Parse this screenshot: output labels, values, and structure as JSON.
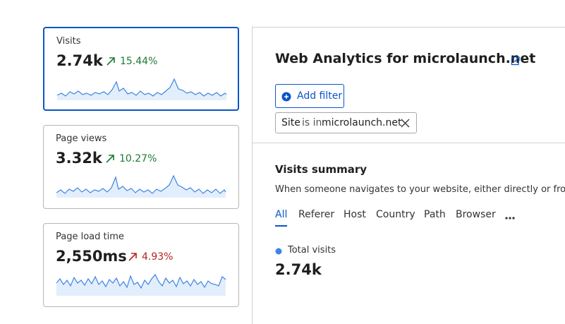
{
  "cards": [
    {
      "label": "Visits",
      "value": "2.74k",
      "change": "15.44%"
    },
    {
      "label": "Page views",
      "value": "3.32k",
      "change": "10.27%"
    },
    {
      "label": "Page load time",
      "value": "2,550ms",
      "change": "4.93%"
    }
  ],
  "header": {
    "title": "Web Analytics for microlaunch.net"
  },
  "filter": {
    "button": "Add filter",
    "chip": {
      "field": "Site",
      "operator": "is in",
      "value": "microlaunch.net"
    }
  },
  "summary": {
    "title": "Visits summary",
    "description": "When someone navigates to your website, either directly or from",
    "tabs": [
      "All",
      "Referer",
      "Host",
      "Country",
      "Path",
      "Browser"
    ],
    "metric": {
      "label": "Total visits",
      "value": "2.74k"
    }
  }
}
